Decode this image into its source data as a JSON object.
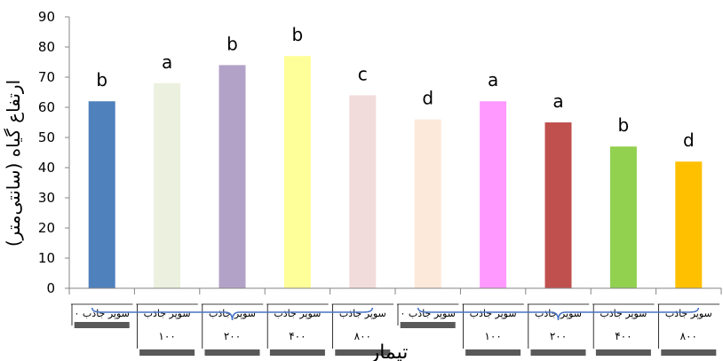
{
  "chart_data": {
    "type": "bar",
    "title": "",
    "ylabel": "ارتفاع گیاه (سانتی‌متر)",
    "xlabel": "تیمار",
    "ylim": [
      0,
      90
    ],
    "yticks": [
      0,
      10,
      20,
      30,
      40,
      50,
      60,
      70,
      80,
      90
    ],
    "grid": false,
    "legend": "none",
    "categories": [
      "سوپر جاذب ۰",
      "سوپر جاذب ۱۰۰",
      "سوپر جاذب ۲۰۰",
      "سوپر جاذب ۴۰۰",
      "سوپر جاذب ۸۰۰",
      "سوپر جاذب ۰",
      "سوپر جاذب ۱۰۰",
      "سوپر جاذب ۲۰۰",
      "سوپر جاذب ۴۰۰",
      "سوپر جاذب ۸۰۰"
    ],
    "category_top_labels": [
      "سوپر جاذب ۰",
      "سوپر جاذب",
      "سوپر جاذب",
      "سوپر جاذب",
      "سوپر جاذب",
      "سوپر جاذب ۰",
      "سوپر جاذب",
      "سوپر جاذب",
      "سوپر جاذب",
      "سوپر جاذب"
    ],
    "category_bottom_labels": [
      "",
      "۱۰۰",
      "۲۰۰",
      "۴۰۰",
      "۸۰۰",
      "",
      "۱۰۰",
      "۲۰۰",
      "۴۰۰",
      "۸۰۰"
    ],
    "values": [
      62,
      68,
      74,
      77,
      64,
      56,
      62,
      55,
      47,
      42
    ],
    "letters": [
      "b",
      "a",
      "b",
      "b",
      "c",
      "d",
      "a",
      "a",
      "b",
      "d"
    ],
    "colors": [
      "#4F81BD",
      "#EBF1DE",
      "#B3A2C7",
      "#FFFF99",
      "#F2DCDB",
      "#FDE9D9",
      "#FF99FF",
      "#C0504D",
      "#92D050",
      "#FFC000"
    ]
  }
}
